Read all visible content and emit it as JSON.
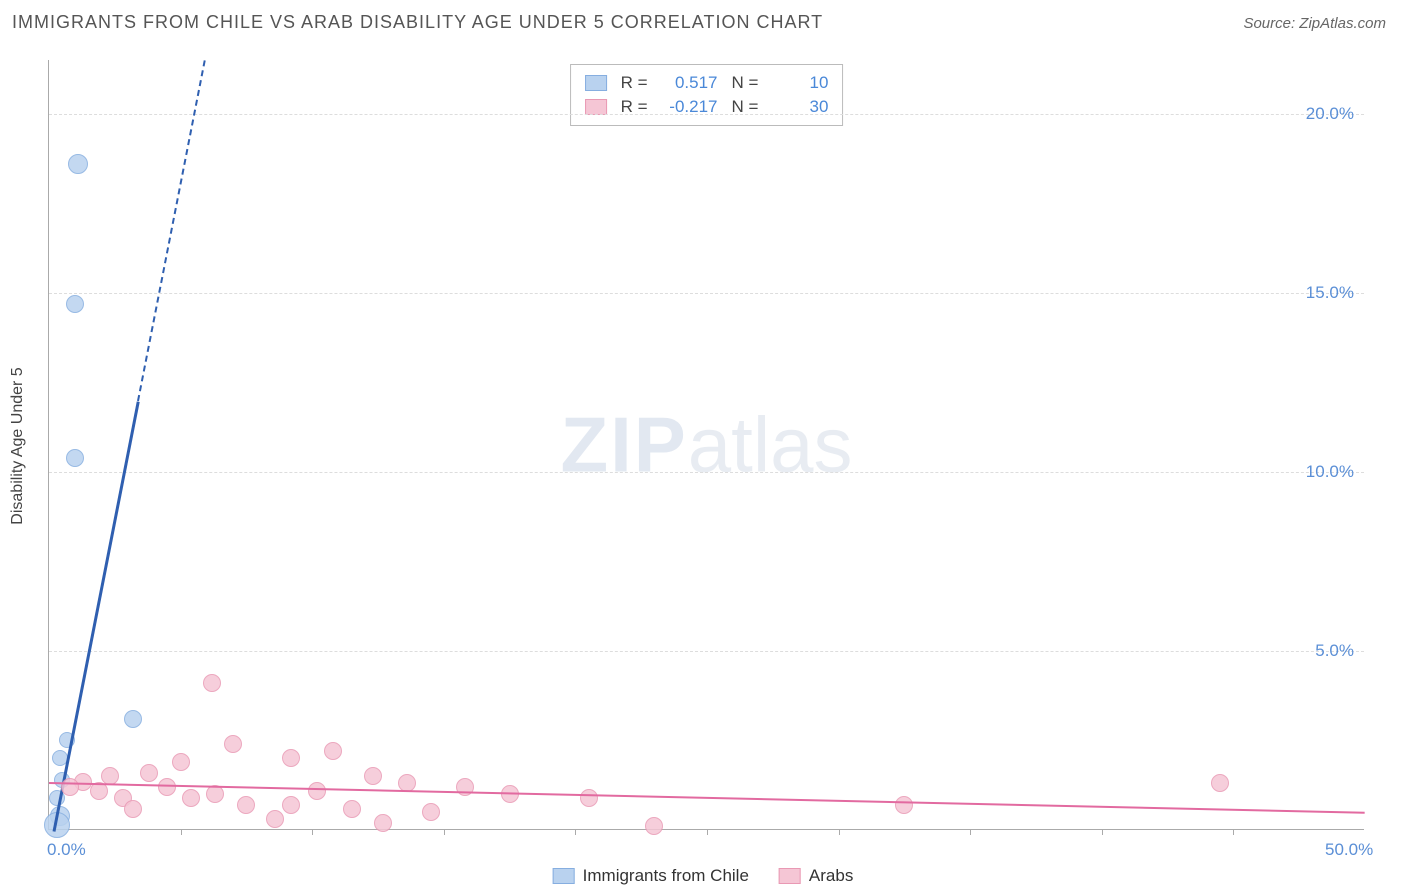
{
  "header": {
    "title": "IMMIGRANTS FROM CHILE VS ARAB DISABILITY AGE UNDER 5 CORRELATION CHART",
    "source": "Source: ZipAtlas.com"
  },
  "watermark": {
    "zip": "ZIP",
    "atlas": "atlas"
  },
  "chart": {
    "type": "scatter",
    "background_color": "#ffffff",
    "grid_color": "#dddddd",
    "axis_color": "#aaaaaa",
    "label_fontsize": 16,
    "tick_fontsize": 17,
    "tick_color": "#5b8fd6",
    "ylabel": "Disability Age Under 5",
    "xlim": [
      0,
      50
    ],
    "ylim": [
      0,
      21.5
    ],
    "yticks": [
      {
        "v": 5.0,
        "label": "5.0%"
      },
      {
        "v": 10.0,
        "label": "10.0%"
      },
      {
        "v": 15.0,
        "label": "15.0%"
      },
      {
        "v": 20.0,
        "label": "20.0%"
      }
    ],
    "xticks_minor": [
      5,
      10,
      15,
      20,
      25,
      30,
      35,
      40,
      45
    ],
    "xtick_labels": [
      {
        "v": 0,
        "label": "0.0%"
      },
      {
        "v": 50,
        "label": "50.0%"
      }
    ],
    "series": [
      {
        "name": "Immigrants from Chile",
        "color_fill": "#b9d2ef",
        "color_stroke": "#86aee0",
        "marker_radius": 9,
        "trend_color": "#2f5fb0",
        "trend_width": 3,
        "trend": {
          "x1": 0.2,
          "y1": 0.0,
          "x2": 3.4,
          "y2": 12.0,
          "dash_to_y": 21.5
        },
        "points": [
          {
            "x": 1.1,
            "y": 18.6,
            "r": 10
          },
          {
            "x": 1.0,
            "y": 14.7,
            "r": 9
          },
          {
            "x": 1.0,
            "y": 10.4,
            "r": 9
          },
          {
            "x": 3.2,
            "y": 3.1,
            "r": 9
          },
          {
            "x": 0.7,
            "y": 2.5,
            "r": 8
          },
          {
            "x": 0.4,
            "y": 2.0,
            "r": 8
          },
          {
            "x": 0.5,
            "y": 1.4,
            "r": 8
          },
          {
            "x": 0.3,
            "y": 0.9,
            "r": 8
          },
          {
            "x": 0.4,
            "y": 0.4,
            "r": 10
          },
          {
            "x": 0.3,
            "y": 0.15,
            "r": 13
          }
        ]
      },
      {
        "name": "Arabs",
        "color_fill": "#f5c6d5",
        "color_stroke": "#e999b4",
        "marker_radius": 9,
        "trend_color": "#e26aa0",
        "trend_width": 2,
        "trend": {
          "x1": 0,
          "y1": 1.35,
          "x2": 50,
          "y2": 0.52
        },
        "points": [
          {
            "x": 6.2,
            "y": 4.1,
            "r": 9
          },
          {
            "x": 7.0,
            "y": 2.4,
            "r": 9
          },
          {
            "x": 10.8,
            "y": 2.2,
            "r": 9
          },
          {
            "x": 5.0,
            "y": 1.9,
            "r": 9
          },
          {
            "x": 9.2,
            "y": 2.0,
            "r": 9
          },
          {
            "x": 3.8,
            "y": 1.6,
            "r": 9
          },
          {
            "x": 2.3,
            "y": 1.5,
            "r": 9
          },
          {
            "x": 1.3,
            "y": 1.35,
            "r": 9
          },
          {
            "x": 1.9,
            "y": 1.1,
            "r": 9
          },
          {
            "x": 0.8,
            "y": 1.2,
            "r": 9
          },
          {
            "x": 4.5,
            "y": 1.2,
            "r": 9
          },
          {
            "x": 5.4,
            "y": 0.9,
            "r": 9
          },
          {
            "x": 6.3,
            "y": 1.0,
            "r": 9
          },
          {
            "x": 7.5,
            "y": 0.7,
            "r": 9
          },
          {
            "x": 8.6,
            "y": 0.3,
            "r": 9
          },
          {
            "x": 9.2,
            "y": 0.7,
            "r": 9
          },
          {
            "x": 10.2,
            "y": 1.1,
            "r": 9
          },
          {
            "x": 11.5,
            "y": 0.6,
            "r": 9
          },
          {
            "x": 12.3,
            "y": 1.5,
            "r": 9
          },
          {
            "x": 12.7,
            "y": 0.2,
            "r": 9
          },
          {
            "x": 13.6,
            "y": 1.3,
            "r": 9
          },
          {
            "x": 14.5,
            "y": 0.5,
            "r": 9
          },
          {
            "x": 15.8,
            "y": 1.2,
            "r": 9
          },
          {
            "x": 17.5,
            "y": 1.0,
            "r": 9
          },
          {
            "x": 20.5,
            "y": 0.9,
            "r": 9
          },
          {
            "x": 23.0,
            "y": 0.1,
            "r": 9
          },
          {
            "x": 32.5,
            "y": 0.7,
            "r": 9
          },
          {
            "x": 44.5,
            "y": 1.3,
            "r": 9
          },
          {
            "x": 2.8,
            "y": 0.9,
            "r": 9
          },
          {
            "x": 3.2,
            "y": 0.6,
            "r": 9
          }
        ]
      }
    ],
    "legend_top": {
      "rows": [
        {
          "swatch_fill": "#b9d2ef",
          "swatch_stroke": "#86aee0",
          "r_label": "R =",
          "r_value": "0.517",
          "n_label": "N =",
          "n_value": "10",
          "value_color": "#4a88d8"
        },
        {
          "swatch_fill": "#f5c6d5",
          "swatch_stroke": "#e999b4",
          "r_label": "R =",
          "r_value": "-0.217",
          "n_label": "N =",
          "n_value": "30",
          "value_color": "#4a88d8"
        }
      ]
    },
    "legend_bottom": {
      "items": [
        {
          "swatch_fill": "#b9d2ef",
          "swatch_stroke": "#86aee0",
          "label": "Immigrants from Chile"
        },
        {
          "swatch_fill": "#f5c6d5",
          "swatch_stroke": "#e999b4",
          "label": "Arabs"
        }
      ]
    }
  }
}
